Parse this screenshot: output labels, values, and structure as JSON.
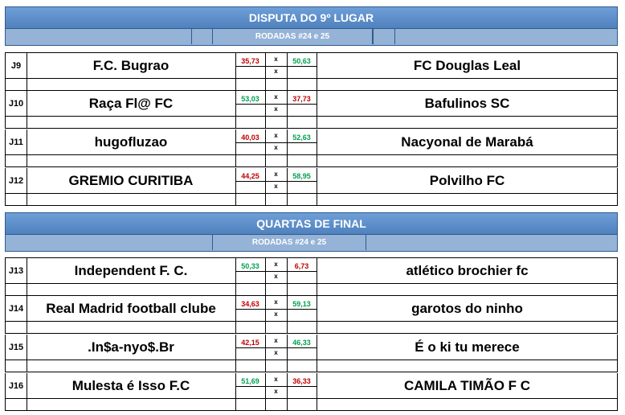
{
  "sections": [
    {
      "title": "DISPUTA DO 9º LUGAR",
      "subtitle": "RODADAS #24 e 25",
      "matches": [
        {
          "id": "J9",
          "home": "F.C. Bugrao",
          "home_score": "35,73",
          "home_color": "red",
          "away": "FC Douglas Leal",
          "away_score": "50,63",
          "away_color": "green"
        },
        {
          "id": "J10",
          "home": "Raça Fl@ FC",
          "home_score": "53,03",
          "home_color": "green",
          "away": "Bafulinos SC",
          "away_score": "37,73",
          "away_color": "red"
        },
        {
          "id": "J11",
          "home": "hugofluzao",
          "home_score": "40,03",
          "home_color": "red",
          "away": "Nacyonal de Marabá",
          "away_score": "52,63",
          "away_color": "green"
        },
        {
          "id": "J12",
          "home": "GREMIO CURITIBA",
          "home_score": "44,25",
          "home_color": "red",
          "away": "Polvilho FC",
          "away_score": "58,95",
          "away_color": "green"
        }
      ]
    },
    {
      "title": "QUARTAS DE FINAL",
      "subtitle": "RODADAS #24 e 25",
      "matches": [
        {
          "id": "J13",
          "home": "Independent F. C.",
          "home_score": "50,33",
          "home_color": "green",
          "away": "atlético brochier fc",
          "away_score": "6,73",
          "away_color": "red"
        },
        {
          "id": "J14",
          "home": "Real Madrid football clube",
          "home_score": "34,63",
          "home_color": "red",
          "away": "garotos do ninho",
          "away_score": "59,13",
          "away_color": "green"
        },
        {
          "id": "J15",
          "home": ".In$a-nyo$.Br",
          "home_score": "42,15",
          "home_color": "red",
          "away": "É o ki tu merece",
          "away_score": "46,33",
          "away_color": "green"
        },
        {
          "id": "J16",
          "home": "Mulesta é Isso F.C",
          "home_score": "51,69",
          "home_color": "green",
          "away": "CAMILA TIMÃO F C",
          "away_score": "36,33",
          "away_color": "red"
        }
      ]
    }
  ],
  "x_label": "x"
}
